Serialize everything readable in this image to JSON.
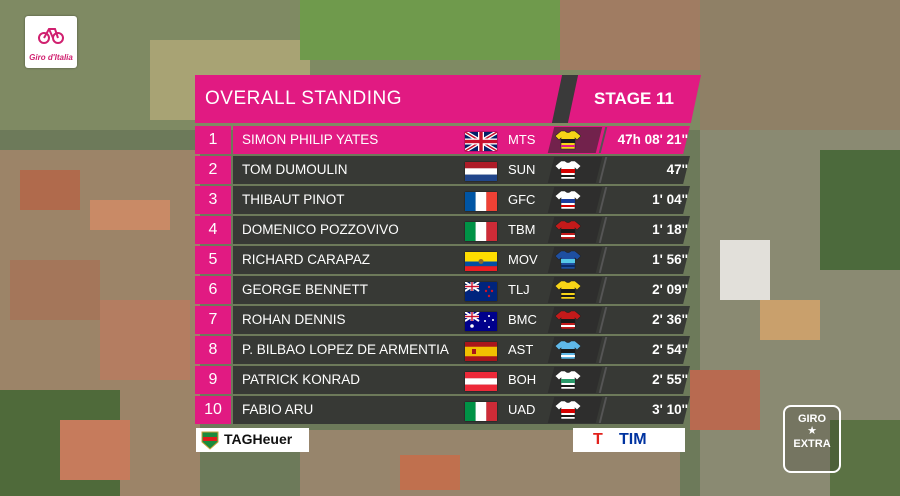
{
  "header": {
    "title": "OVERALL STANDING",
    "stage": "STAGE 11"
  },
  "brand": {
    "logo_text": "Giro d'Italia",
    "accent": "#e11a82"
  },
  "standings": [
    {
      "pos": "1",
      "name": "SIMON PHILIP YATES",
      "flag": "gbr",
      "team": "MTS",
      "gap": "47h 08' 21''",
      "jersey": "mts"
    },
    {
      "pos": "2",
      "name": "TOM DUMOULIN",
      "flag": "ned",
      "team": "SUN",
      "gap": "47''",
      "jersey": "sun"
    },
    {
      "pos": "3",
      "name": "THIBAUT PINOT",
      "flag": "fra",
      "team": "GFC",
      "gap": "1' 04''",
      "jersey": "gfc"
    },
    {
      "pos": "4",
      "name": "DOMENICO POZZOVIVO",
      "flag": "ita",
      "team": "TBM",
      "gap": "1' 18''",
      "jersey": "tbm"
    },
    {
      "pos": "5",
      "name": "RICHARD CARAPAZ",
      "flag": "ecu",
      "team": "MOV",
      "gap": "1' 56''",
      "jersey": "mov"
    },
    {
      "pos": "6",
      "name": "GEORGE BENNETT",
      "flag": "nzl",
      "team": "TLJ",
      "gap": "2' 09''",
      "jersey": "tlj"
    },
    {
      "pos": "7",
      "name": "ROHAN DENNIS",
      "flag": "aus",
      "team": "BMC",
      "gap": "2' 36''",
      "jersey": "bmc"
    },
    {
      "pos": "8",
      "name": "P. BILBAO LOPEZ DE ARMENTIA",
      "flag": "esp",
      "team": "AST",
      "gap": "2' 54''",
      "jersey": "ast"
    },
    {
      "pos": "9",
      "name": "PATRICK KONRAD",
      "flag": "aut",
      "team": "BOH",
      "gap": "2' 55''",
      "jersey": "boh"
    },
    {
      "pos": "10",
      "name": "FABIO ARU",
      "flag": "ita",
      "team": "UAD",
      "gap": "3' 10''",
      "jersey": "uad"
    }
  ],
  "sponsors": {
    "left": "TAGHeuer",
    "right": "TIM",
    "right_mark": "T"
  },
  "extra_badge": {
    "line1": "GIRO",
    "star": "★",
    "line2": "EXTRA"
  }
}
